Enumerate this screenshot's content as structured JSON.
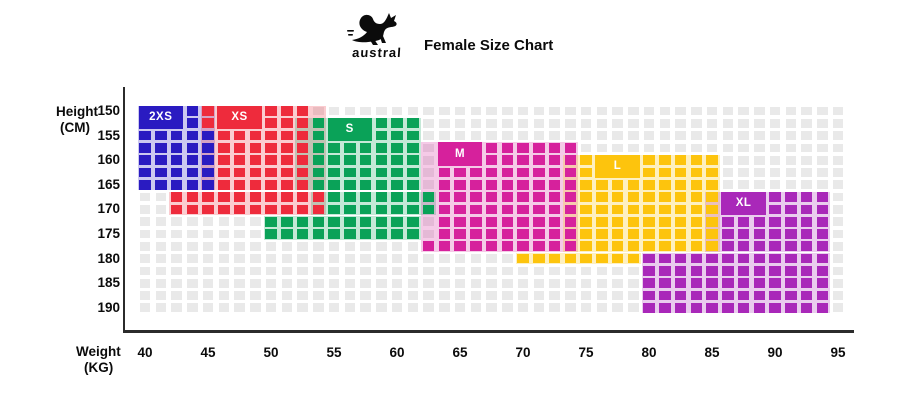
{
  "title": "Female Size Chart",
  "brand": "austral",
  "axes": {
    "y_title_line1": "Height",
    "y_title_line2": "(CM)",
    "x_title_line1": "Weight",
    "x_title_line2": "(KG)",
    "y_ticks": [
      150,
      155,
      160,
      165,
      170,
      175,
      180,
      185,
      190
    ],
    "x_ticks": [
      40,
      45,
      50,
      55,
      60,
      65,
      70,
      75,
      80,
      85,
      90,
      95
    ]
  },
  "chart_data": {
    "type": "heatmap",
    "title": "Female Size Chart",
    "xlabel": "Weight (KG)",
    "ylabel": "Height (CM)",
    "x_range": [
      40,
      95
    ],
    "y_range": [
      150,
      190
    ],
    "grid": {
      "cols": 45,
      "rows": 17,
      "weight_start_kg": 40,
      "weight_step_kg": 1.25,
      "height_start_cm": 150,
      "height_step_cm": 2.5,
      "empty_cell_color": "#e9e9e9"
    },
    "sizes": [
      {
        "name": "2XS",
        "color": "#2a1bc1",
        "tint_opacity": 0.24,
        "weight_range_kg": [
          40,
          45
        ],
        "height_range_cm": [
          150,
          165
        ],
        "segments": [
          {
            "rows": [
              0,
              1
            ],
            "cols": [
              0,
              3
            ]
          },
          {
            "rows": [
              2,
              6
            ],
            "cols": [
              0,
              4
            ]
          }
        ],
        "tint_blocks": [
          {
            "r": [
              -0.45,
              6.45
            ],
            "c": [
              -0.45,
              4.45
            ]
          }
        ],
        "badge": {
          "label": "2XS",
          "row": 0,
          "col": 0,
          "col_span": 2,
          "row_span": 1
        }
      },
      {
        "name": "XS",
        "color": "#ee2b3c",
        "tint_opacity": 0.24,
        "weight_range_kg": [
          45,
          53.75
        ],
        "height_range_cm": [
          150,
          170
        ],
        "segments": [
          {
            "rows": [
              0,
              1
            ],
            "cols": [
              4,
              10
            ]
          },
          {
            "rows": [
              2,
              6
            ],
            "cols": [
              5,
              10
            ]
          },
          {
            "rows": [
              7,
              8
            ],
            "cols": [
              2,
              11
            ]
          }
        ],
        "tint_blocks": [
          {
            "r": [
              -0.45,
              6.45
            ],
            "c": [
              3.55,
              11.5
            ]
          },
          {
            "r": [
              6.55,
              8.45
            ],
            "c": [
              1.55,
              11.5
            ]
          }
        ],
        "badge": {
          "label": "XS",
          "row": 0,
          "col": 5,
          "col_span": 2,
          "row_span": 1
        }
      },
      {
        "name": "S",
        "color": "#0aa258",
        "tint_opacity": 0.24,
        "weight_range_kg": [
          50,
          61.25
        ],
        "height_range_cm": [
          152.5,
          175
        ],
        "segments": [
          {
            "rows": [
              1,
              6
            ],
            "cols": [
              11,
              17
            ]
          },
          {
            "rows": [
              7,
              8
            ],
            "cols": [
              12,
              18
            ]
          },
          {
            "rows": [
              9,
              10
            ],
            "cols": [
              8,
              17
            ]
          }
        ],
        "tint_blocks": [
          {
            "r": [
              0.55,
              6.45
            ],
            "c": [
              9.55,
              17.5
            ]
          },
          {
            "r": [
              6.55,
              8.45
            ],
            "c": [
              10.55,
              18.45
            ]
          },
          {
            "r": [
              8.55,
              10.45
            ],
            "c": [
              7.55,
              17.5
            ]
          }
        ],
        "badge": {
          "label": "S",
          "row": 1,
          "col": 12,
          "col_span": 2,
          "row_span": 1
        }
      },
      {
        "name": "M",
        "color": "#d6219c",
        "tint_opacity": 0.24,
        "weight_range_kg": [
          62.5,
          73.75
        ],
        "height_range_cm": [
          157.5,
          177.5
        ],
        "segments": [
          {
            "rows": [
              3,
              10
            ],
            "cols": [
              19,
              27
            ]
          },
          {
            "rows": [
              11,
              11
            ],
            "cols": [
              18,
              27
            ]
          }
        ],
        "tint_blocks": [
          {
            "r": [
              2.55,
              11.45
            ],
            "c": [
              17.55,
              27.5
            ]
          }
        ],
        "badge": {
          "label": "M",
          "row": 3,
          "col": 19,
          "col_span": 2,
          "row_span": 1
        }
      },
      {
        "name": "L",
        "color": "#fdc40d",
        "tint_opacity": 0.26,
        "weight_range_kg": [
          70,
          85
        ],
        "height_range_cm": [
          160,
          180
        ],
        "segments": [
          {
            "rows": [
              4,
              11
            ],
            "cols": [
              28,
              36
            ]
          },
          {
            "rows": [
              12,
              12
            ],
            "cols": [
              24,
              31
            ]
          }
        ],
        "tint_blocks": [
          {
            "r": [
              3.55,
              11.45
            ],
            "c": [
              26.55,
              36.5
            ]
          },
          {
            "r": [
              11.55,
              12.45
            ],
            "c": [
              23.55,
              31.5
            ]
          }
        ],
        "badge": {
          "label": "L",
          "row": 4,
          "col": 29,
          "col_span": 2,
          "row_span": 1
        }
      },
      {
        "name": "XL",
        "color": "#a928b9",
        "tint_opacity": 0.24,
        "weight_range_kg": [
          80,
          93.75
        ],
        "height_range_cm": [
          167.5,
          190
        ],
        "segments": [
          {
            "rows": [
              7,
              11
            ],
            "cols": [
              37,
              43
            ]
          },
          {
            "rows": [
              12,
              16
            ],
            "cols": [
              32,
              43
            ]
          }
        ],
        "tint_blocks": [
          {
            "r": [
              6.55,
              11.45
            ],
            "c": [
              35.55,
              43.5
            ]
          },
          {
            "r": [
              11.55,
              16.45
            ],
            "c": [
              31.55,
              43.5
            ]
          }
        ],
        "badge": {
          "label": "XL",
          "row": 7,
          "col": 37,
          "col_span": 2,
          "row_span": 1
        }
      }
    ]
  }
}
